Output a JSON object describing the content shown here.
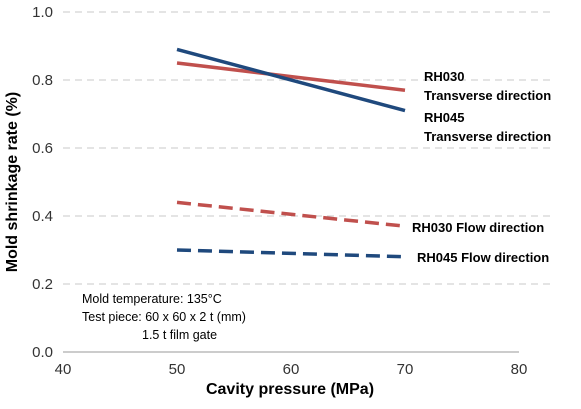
{
  "chart_data": {
    "type": "line",
    "xlabel": "Cavity pressure (MPa)",
    "ylabel": "Mold shrinkage rate (%)",
    "xlim": [
      40,
      80
    ],
    "ylim": [
      0.0,
      1.0
    ],
    "xticks": [
      "40",
      "50",
      "60",
      "70",
      "80"
    ],
    "yticks": [
      "0.0",
      "0.2",
      "0.4",
      "0.6",
      "0.8",
      "1.0"
    ],
    "grid": "horizontal dashed",
    "series": [
      {
        "name": "RH030 Transverse direction",
        "label_lines": [
          "RH030",
          "Transverse direction"
        ],
        "style": "solid",
        "color": "#c0504d",
        "x": [
          50,
          70
        ],
        "y": [
          0.85,
          0.77
        ]
      },
      {
        "name": "RH045 Transverse direction",
        "label_lines": [
          "RH045",
          "Transverse direction"
        ],
        "style": "solid",
        "color": "#1f497d",
        "x": [
          50,
          70
        ],
        "y": [
          0.89,
          0.71
        ]
      },
      {
        "name": "RH030 Flow direction",
        "label_lines": [
          "RH030 Flow direction"
        ],
        "style": "dashed",
        "color": "#c0504d",
        "x": [
          50,
          70
        ],
        "y": [
          0.44,
          0.37
        ]
      },
      {
        "name": "RH045 Flow direction",
        "label_lines": [
          "RH045 Flow direction"
        ],
        "style": "dashed",
        "color": "#1f497d",
        "x": [
          50,
          70
        ],
        "y": [
          0.3,
          0.28
        ]
      }
    ],
    "annotations": [
      "Mold  temperature: 135°C",
      "Test piece: 60 x 60 x 2 t (mm)",
      "1.5 t film gate"
    ]
  }
}
